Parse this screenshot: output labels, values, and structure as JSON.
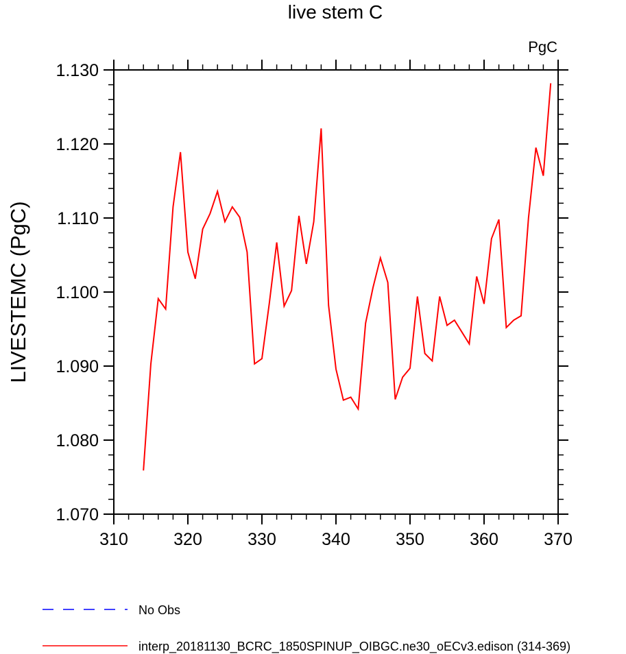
{
  "chart_data": {
    "type": "line",
    "title": "live stem C",
    "units_label": "PgC",
    "ylabel": "LIVESTEMC  (PgC)",
    "xlabel": "",
    "xlim": [
      310,
      370
    ],
    "ylim": [
      1.07,
      1.13
    ],
    "x_ticks": [
      "310",
      "320",
      "330",
      "340",
      "350",
      "360",
      "370"
    ],
    "y_ticks": [
      "1.070",
      "1.080",
      "1.090",
      "1.100",
      "1.110",
      "1.120",
      "1.130"
    ],
    "legend": [
      {
        "label": "No Obs",
        "color": "#0000ff",
        "style": "dashed"
      },
      {
        "label": "interp_20181130_BCRC_1850SPINUP_OIBGC.ne30_oECv3.edison (314-369)",
        "color": "#ff0000",
        "style": "solid"
      }
    ],
    "series": [
      {
        "name": "interp_20181130_BCRC_1850SPINUP_OIBGC.ne30_oECv3.edison (314-369)",
        "color": "#ff0000",
        "x": [
          314,
          315,
          316,
          317,
          318,
          319,
          320,
          321,
          322,
          323,
          324,
          325,
          326,
          327,
          328,
          329,
          330,
          331,
          332,
          333,
          334,
          335,
          336,
          337,
          338,
          339,
          340,
          341,
          342,
          343,
          344,
          345,
          346,
          347,
          348,
          349,
          350,
          351,
          352,
          353,
          354,
          355,
          356,
          357,
          358,
          359,
          360,
          361,
          362,
          363,
          364,
          365,
          366,
          367,
          368,
          369
        ],
        "y": [
          1.0759,
          1.0903,
          1.0991,
          1.0977,
          1.1115,
          1.1189,
          1.1054,
          1.1018,
          1.1085,
          1.1106,
          1.1136,
          1.1095,
          1.1115,
          1.1101,
          1.1054,
          1.0903,
          1.091,
          1.0985,
          1.1067,
          1.0981,
          1.1002,
          1.1103,
          1.1038,
          1.1095,
          1.1221,
          1.0982,
          1.0896,
          1.0854,
          1.0858,
          1.0842,
          1.0958,
          1.1006,
          1.1046,
          1.1013,
          1.0855,
          1.0885,
          1.0897,
          1.0994,
          1.0917,
          1.0907,
          1.0994,
          1.0955,
          1.0962,
          1.0946,
          1.093,
          1.1021,
          1.0984,
          1.1072,
          1.1098,
          1.0952,
          1.0962,
          1.0968,
          1.11,
          1.1195,
          1.1157,
          1.1282
        ]
      }
    ]
  }
}
